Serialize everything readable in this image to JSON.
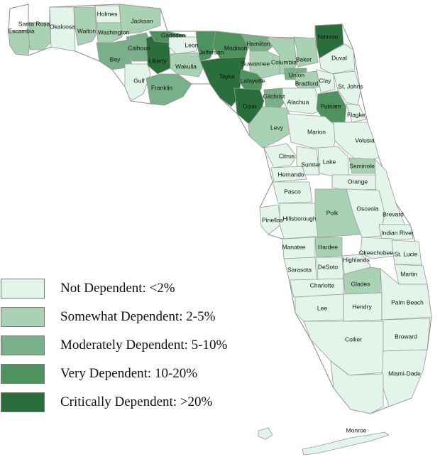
{
  "levels": {
    "none": {
      "label": "Not Dependent: <2%",
      "color": "#e3f4ea"
    },
    "some": {
      "label": "Somewhat Dependent: 2-5%",
      "color": "#a9d2b5"
    },
    "moderate": {
      "label": "Moderately Dependent: 5-10%",
      "color": "#79b089"
    },
    "very": {
      "label": "Very Dependent: 10-20%",
      "color": "#4e935e"
    },
    "critical": {
      "label": "Critically Dependent: >20%",
      "color": "#2a6e3b"
    }
  },
  "legend_order": [
    "none",
    "some",
    "moderate",
    "very",
    "critical"
  ],
  "counties": [
    {
      "id": "escambia",
      "name": "Escambia",
      "level": "some"
    },
    {
      "id": "santa-rosa",
      "name": "Santa Rosa",
      "level": "some"
    },
    {
      "id": "okaloosa",
      "name": "Okaloosa",
      "level": "none"
    },
    {
      "id": "walton",
      "name": "Walton",
      "level": "some"
    },
    {
      "id": "holmes",
      "name": "Holmes",
      "level": "none"
    },
    {
      "id": "washington",
      "name": "Washington",
      "level": "some"
    },
    {
      "id": "jackson",
      "name": "Jackson",
      "level": "some"
    },
    {
      "id": "bay",
      "name": "Bay",
      "level": "moderate"
    },
    {
      "id": "calhoun",
      "name": "Calhoun",
      "level": "moderate"
    },
    {
      "id": "gulf",
      "name": "Gulf",
      "level": "none"
    },
    {
      "id": "liberty",
      "name": "Liberty",
      "level": "critical"
    },
    {
      "id": "gadsden",
      "name": "Gadsden",
      "level": "very"
    },
    {
      "id": "franklin",
      "name": "Franklin",
      "level": "moderate"
    },
    {
      "id": "leon",
      "name": "Leon",
      "level": "none"
    },
    {
      "id": "wakulla",
      "name": "Wakulla",
      "level": "some"
    },
    {
      "id": "jefferson",
      "name": "Jefferson",
      "level": "very"
    },
    {
      "id": "madison",
      "name": "Madison",
      "level": "very"
    },
    {
      "id": "taylor",
      "name": "Taylor",
      "level": "critical"
    },
    {
      "id": "hamilton",
      "name": "Hamilton",
      "level": "moderate"
    },
    {
      "id": "suwannee",
      "name": "Suwannee",
      "level": "some"
    },
    {
      "id": "lafayette",
      "name": "Lafayette",
      "level": "very"
    },
    {
      "id": "dixie",
      "name": "Dixie",
      "level": "critical"
    },
    {
      "id": "columbia",
      "name": "Columbia",
      "level": "some"
    },
    {
      "id": "gilchrist",
      "name": "Gilchrist",
      "level": "moderate"
    },
    {
      "id": "levy",
      "name": "Levy",
      "level": "some"
    },
    {
      "id": "baker",
      "name": "Baker",
      "level": "some"
    },
    {
      "id": "union",
      "name": "Union",
      "level": "moderate"
    },
    {
      "id": "bradford",
      "name": "Bradford",
      "level": "some"
    },
    {
      "id": "alachua",
      "name": "Alachua",
      "level": "none"
    },
    {
      "id": "nassau",
      "name": "Nassau",
      "level": "critical"
    },
    {
      "id": "duval",
      "name": "Duval",
      "level": "none"
    },
    {
      "id": "clay",
      "name": "Clay",
      "level": "none"
    },
    {
      "id": "st-johns",
      "name": "St. Johns",
      "level": "none"
    },
    {
      "id": "putnam",
      "name": "Putnam",
      "level": "very"
    },
    {
      "id": "flagler",
      "name": "Flagler",
      "level": "none"
    },
    {
      "id": "marion",
      "name": "Marion",
      "level": "none"
    },
    {
      "id": "volusia",
      "name": "Volusia",
      "level": "none"
    },
    {
      "id": "citrus",
      "name": "Citrus",
      "level": "none"
    },
    {
      "id": "sumter",
      "name": "Sumter",
      "level": "none"
    },
    {
      "id": "lake",
      "name": "Lake",
      "level": "none"
    },
    {
      "id": "seminole",
      "name": "Seminole",
      "level": "some"
    },
    {
      "id": "hernando",
      "name": "Hernando",
      "level": "none"
    },
    {
      "id": "orange",
      "name": "Orange",
      "level": "none"
    },
    {
      "id": "pasco",
      "name": "Pasco",
      "level": "none"
    },
    {
      "id": "brevard",
      "name": "Brevard",
      "level": "none"
    },
    {
      "id": "pinellas",
      "name": "Pinellas",
      "level": "none"
    },
    {
      "id": "hillsborough",
      "name": "Hillsborough",
      "level": "none"
    },
    {
      "id": "polk",
      "name": "Polk",
      "level": "some"
    },
    {
      "id": "osceola",
      "name": "Osceola",
      "level": "none"
    },
    {
      "id": "indian-river",
      "name": "Indian River",
      "level": "none"
    },
    {
      "id": "manatee",
      "name": "Manatee",
      "level": "none"
    },
    {
      "id": "hardee",
      "name": "Hardee",
      "level": "some"
    },
    {
      "id": "okeechobee",
      "name": "Okeechobee",
      "level": "none"
    },
    {
      "id": "st-lucie",
      "name": "St. Lucie",
      "level": "none"
    },
    {
      "id": "sarasota",
      "name": "Sarasota",
      "level": "none"
    },
    {
      "id": "desoto",
      "name": "DeSoto",
      "level": "none"
    },
    {
      "id": "highlands",
      "name": "Highlands",
      "level": "none"
    },
    {
      "id": "martin",
      "name": "Martin",
      "level": "none"
    },
    {
      "id": "charlotte",
      "name": "Charlotte",
      "level": "none"
    },
    {
      "id": "glades",
      "name": "Glades",
      "level": "some"
    },
    {
      "id": "palm-beach",
      "name": "Palm Beach",
      "level": "none"
    },
    {
      "id": "lee",
      "name": "Lee",
      "level": "none"
    },
    {
      "id": "hendry",
      "name": "Hendry",
      "level": "none"
    },
    {
      "id": "broward",
      "name": "Broward",
      "level": "none"
    },
    {
      "id": "collier",
      "name": "Collier",
      "level": "none"
    },
    {
      "id": "miami-dade",
      "name": "Miami-Dade",
      "level": "none"
    },
    {
      "id": "monroe",
      "name": "Monroe",
      "level": "none"
    }
  ]
}
